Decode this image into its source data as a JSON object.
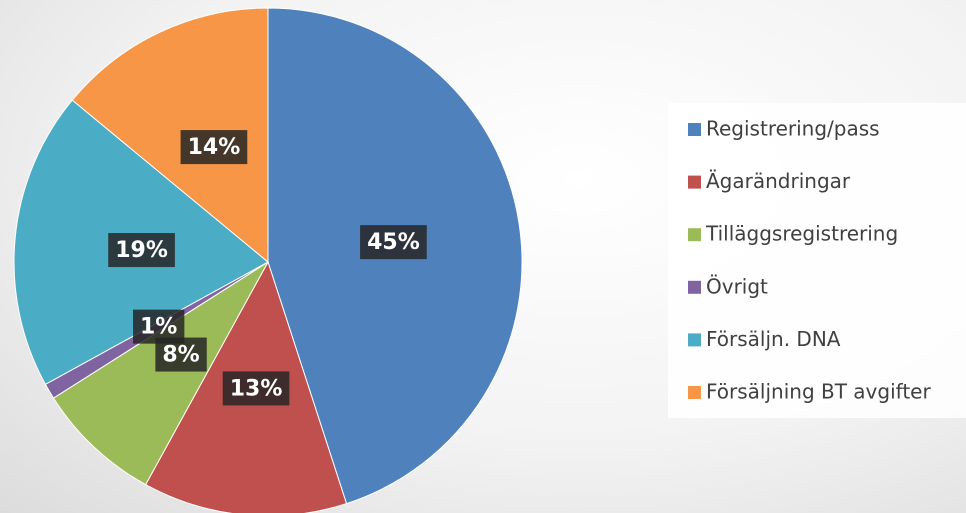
{
  "chart_data": {
    "type": "pie",
    "categories": [
      "Registrering/pass",
      "Ägarändringar",
      "Tilläggsregistrering",
      "Övrigt",
      "Försäljn. DNA",
      "Försäljning BT avgifter"
    ],
    "values": [
      45,
      13,
      8,
      1,
      19,
      14
    ],
    "value_labels": [
      "45%",
      "13%",
      "8%",
      "1%",
      "19%",
      "14%"
    ],
    "colors": [
      "#4f81bd",
      "#c0504d",
      "#9bbb59",
      "#8064a2",
      "#4bacc6",
      "#f79646"
    ],
    "legend": "right"
  }
}
